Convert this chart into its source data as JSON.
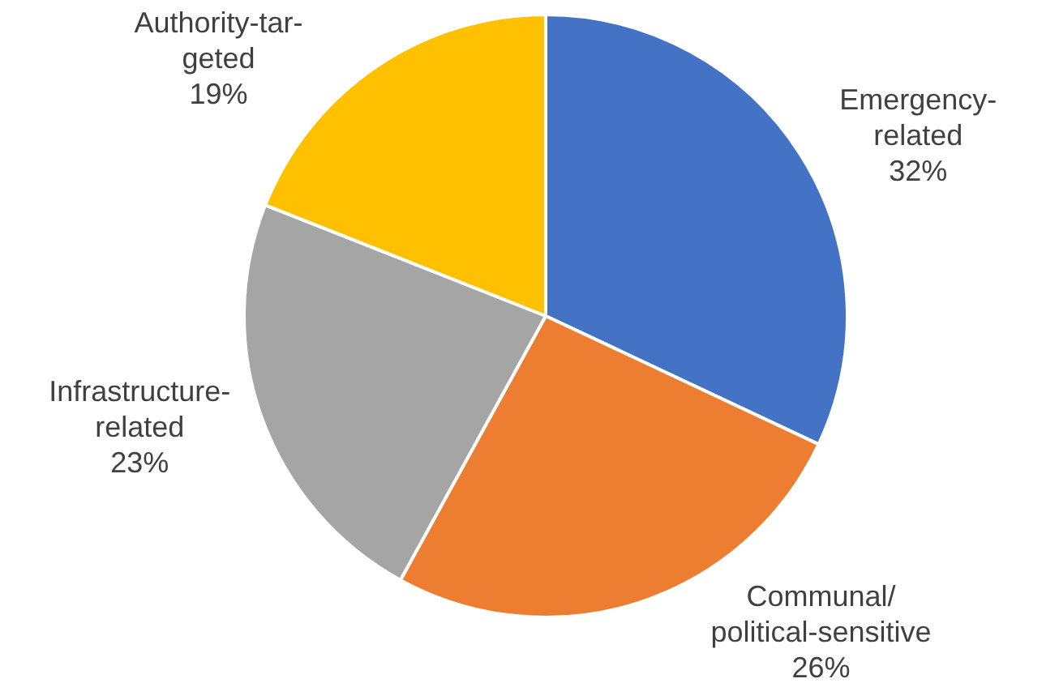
{
  "chart_data": {
    "type": "pie",
    "categories": [
      "Emergency-\nrelated",
      "Communal/\npolitical-sensitive",
      "Infrastructure-\nrelated",
      "Authority-tar-\ngeted"
    ],
    "values": [
      32,
      26,
      23,
      19
    ],
    "value_labels": [
      "32%",
      "26%",
      "23%",
      "19%"
    ],
    "colors": [
      "#4472c4",
      "#ed7d31",
      "#a5a5a5",
      "#ffc000"
    ],
    "legend": false
  }
}
